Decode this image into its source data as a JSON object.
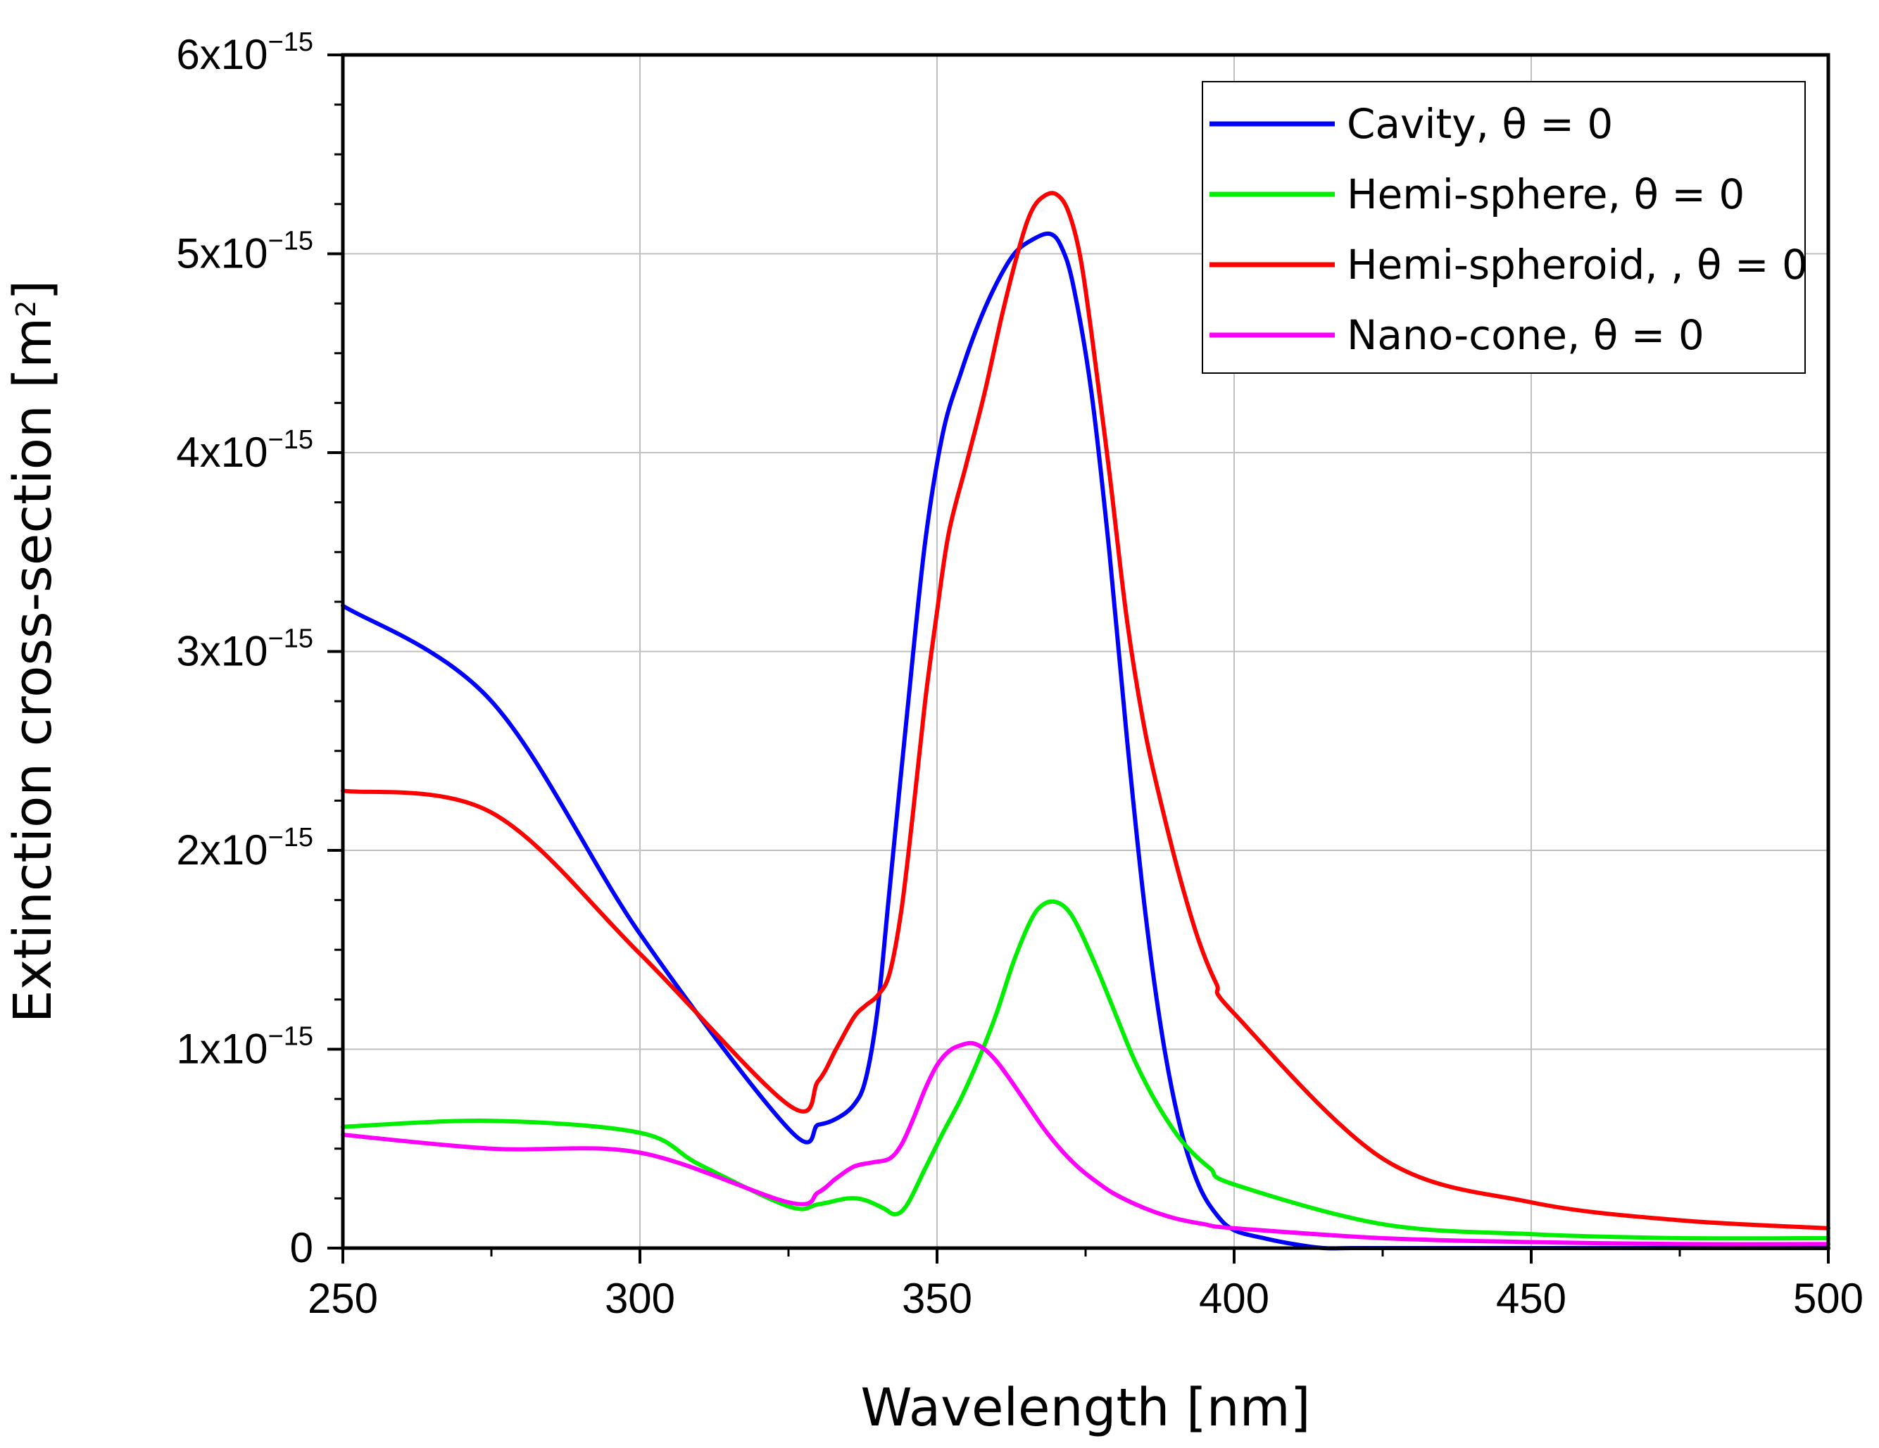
{
  "chart_data": {
    "type": "line",
    "title": "",
    "xlabel": "Wavelength [nm]",
    "ylabel": "Extinction cross-section [m",
    "ylabel_sup": "2",
    "ylabel_end": "]",
    "xlim": [
      250,
      500
    ],
    "ylim": [
      0,
      6e-15
    ],
    "grid": true,
    "legend_position": "top-right",
    "x_ticks": [
      {
        "value": 250,
        "label": "250"
      },
      {
        "value": 300,
        "label": "300"
      },
      {
        "value": 350,
        "label": "350"
      },
      {
        "value": 400,
        "label": "400"
      },
      {
        "value": 450,
        "label": "450"
      },
      {
        "value": 500,
        "label": "500"
      }
    ],
    "y_ticks": [
      {
        "value": 0,
        "label": "0",
        "sup": ""
      },
      {
        "value": 1e-15,
        "label": "1x10",
        "sup": "−15"
      },
      {
        "value": 2e-15,
        "label": "2x10",
        "sup": "−15"
      },
      {
        "value": 3e-15,
        "label": "3x10",
        "sup": "−15"
      },
      {
        "value": 4e-15,
        "label": "4x10",
        "sup": "−15"
      },
      {
        "value": 5e-15,
        "label": "5x10",
        "sup": "−15"
      },
      {
        "value": 6e-15,
        "label": "6x10",
        "sup": "−15"
      }
    ],
    "series": [
      {
        "name": "Cavity, θ = 0",
        "color": "#0000ff",
        "x": [
          250,
          275,
          300,
          325,
          330,
          333,
          336,
          338,
          340,
          342,
          345,
          348,
          351,
          354,
          357,
          360,
          363,
          366,
          369,
          371,
          373,
          376,
          379,
          382,
          385,
          388,
          391,
          394,
          397,
          400,
          405,
          410,
          415,
          420,
          430,
          450,
          475,
          500
        ],
        "y": [
          3.23e-15,
          2.75e-15,
          1.58e-15,
          6e-16,
          6.2e-16,
          6.5e-16,
          7.2e-16,
          8.5e-16,
          1.2e-15,
          1.8e-15,
          2.7e-15,
          3.55e-15,
          4.1e-15,
          4.4e-15,
          4.65e-15,
          4.85e-15,
          5e-15,
          5.07e-15,
          5.1e-15,
          5.03e-15,
          4.83e-15,
          4.3e-15,
          3.5e-15,
          2.55e-15,
          1.7e-15,
          1.05e-15,
          6e-16,
          3.2e-16,
          1.7e-16,
          9e-17,
          5e-17,
          2e-17,
          0.0,
          0.0,
          0.0,
          0.0,
          0.0,
          0.0
        ]
      },
      {
        "name": "Hemi-sphere, θ = 0",
        "color": "#00ee00",
        "x": [
          250,
          275,
          300,
          310,
          325,
          330,
          335,
          338,
          341,
          343,
          345,
          348,
          351,
          354,
          357,
          360,
          363,
          366,
          368,
          370,
          372,
          374,
          377,
          380,
          383,
          386,
          389,
          392,
          396,
          400,
          425,
          450,
          475,
          500
        ],
        "y": [
          6.1e-16,
          6.4e-16,
          5.8e-16,
          4.2e-16,
          2.1e-16,
          2.2e-16,
          2.5e-16,
          2.4e-16,
          2e-16,
          1.7e-16,
          2.2e-16,
          4e-16,
          5.8e-16,
          7.5e-16,
          9.5e-16,
          1.18e-15,
          1.45e-15,
          1.66e-15,
          1.73e-15,
          1.74e-15,
          1.7e-15,
          1.6e-15,
          1.4e-15,
          1.18e-15,
          9.6e-16,
          7.8e-16,
          6.3e-16,
          5.1e-16,
          4e-16,
          3.2e-16,
          1.2e-16,
          7e-17,
          5e-17,
          5e-17
        ]
      },
      {
        "name": "Hemi-spheroid, , θ = 0",
        "color": "#ff0000",
        "x": [
          250,
          275,
          300,
          325,
          330,
          333,
          336,
          338,
          340,
          342,
          344,
          346,
          348,
          350,
          352,
          355,
          358,
          361,
          364,
          366,
          368,
          370,
          372,
          374,
          376,
          379,
          382,
          385,
          388,
          391,
          394,
          397,
          400,
          425,
          450,
          475,
          500
        ],
        "y": [
          2.3e-15,
          2.19e-15,
          1.48e-15,
          7.2e-16,
          8.4e-16,
          1e-15,
          1.16e-15,
          1.22e-15,
          1.27e-15,
          1.38e-15,
          1.7e-15,
          2.2e-15,
          2.75e-15,
          3.2e-15,
          3.6e-15,
          3.95e-15,
          4.3e-15,
          4.7e-15,
          5.05e-15,
          5.22e-15,
          5.29e-15,
          5.3e-15,
          5.22e-15,
          5e-15,
          4.6e-15,
          3.9e-15,
          3.15e-15,
          2.6e-15,
          2.2e-15,
          1.85e-15,
          1.55e-15,
          1.33e-15,
          1.18e-15,
          4.5e-16,
          2.3e-16,
          1.4e-16,
          1e-16
        ]
      },
      {
        "name": "Nano-cone, θ = 0",
        "color": "#ff00ff",
        "x": [
          250,
          275,
          300,
          325,
          330,
          333,
          336,
          339,
          342,
          344,
          346,
          348,
          350,
          352,
          354,
          356,
          358,
          360,
          362,
          365,
          368,
          371,
          374,
          377,
          380,
          385,
          390,
          395,
          400,
          425,
          450,
          475,
          500
        ],
        "y": [
          5.7e-16,
          5e-16,
          4.8e-16,
          2.3e-16,
          2.8e-16,
          3.5e-16,
          4.1e-16,
          4.3e-16,
          4.5e-16,
          5.2e-16,
          6.5e-16,
          8e-16,
          9.2e-16,
          9.9e-16,
          1.02e-15,
          1.03e-15,
          1e-15,
          9.4e-16,
          8.6e-16,
          7.3e-16,
          6e-16,
          4.9e-16,
          4e-16,
          3.3e-16,
          2.7e-16,
          2e-16,
          1.5e-16,
          1.2e-16,
          1e-16,
          5e-17,
          3e-17,
          2e-17,
          2e-17
        ]
      }
    ]
  }
}
